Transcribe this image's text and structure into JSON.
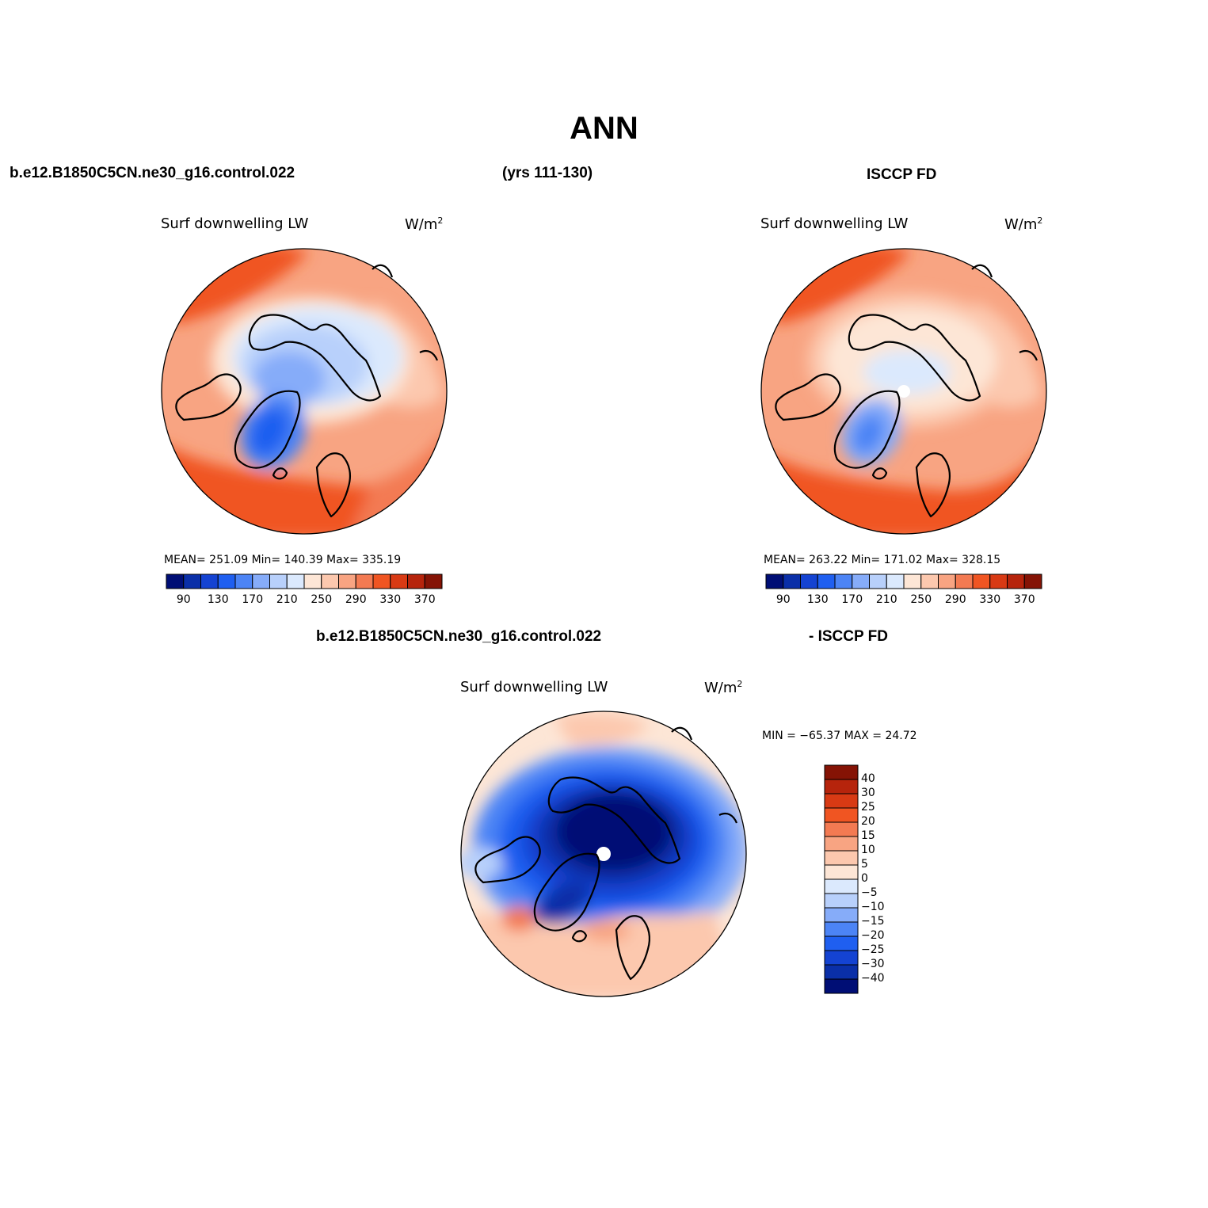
{
  "title": "ANN",
  "header": {
    "case_name": "b.e12.B1850C5CN.ne30_g16.control.022",
    "years": "(yrs 111-130)",
    "obs_name": "ISCCP FD",
    "diff_case": "b.e12.B1850C5CN.ne30_g16.control.022",
    "diff_obs": "- ISCCP FD"
  },
  "panels": [
    {
      "title": "Surf downwelling LW",
      "units": "W/m",
      "units_sup": "2",
      "stats": "MEAN= 251.09   Min= 140.39   Max= 335.19"
    },
    {
      "title": "Surf downwelling LW",
      "units": "W/m",
      "units_sup": "2",
      "stats": "MEAN= 263.22   Min= 171.02   Max= 328.15"
    },
    {
      "title": "Surf downwelling LW",
      "units": "W/m",
      "units_sup": "2",
      "stats": "MIN = −65.37 MAX =  24.72"
    }
  ],
  "chart_data": [
    {
      "type": "heatmap",
      "projection": "north-polar-stereographic",
      "title": "Surf downwelling LW",
      "units": "W/m^2",
      "mean": 251.09,
      "min": 140.39,
      "max": 335.19,
      "colorbar_ticks": [
        "90",
        "130",
        "170",
        "210",
        "250",
        "290",
        "330",
        "370"
      ],
      "levels": [
        90,
        110,
        130,
        150,
        170,
        190,
        210,
        230,
        250,
        270,
        290,
        310,
        330,
        350,
        370
      ],
      "colors": [
        "#000e75",
        "#0a2fa8",
        "#1443d2",
        "#1f5ff0",
        "#4c84f5",
        "#86acf9",
        "#b8d0fb",
        "#dbe9fd",
        "#fde6d6",
        "#fcc8ae",
        "#f8a482",
        "#f37a52",
        "#f05522",
        "#d83a14",
        "#b6240c",
        "#851305"
      ]
    },
    {
      "type": "heatmap",
      "projection": "north-polar-stereographic",
      "title": "Surf downwelling LW",
      "units": "W/m^2",
      "mean": 263.22,
      "min": 171.02,
      "max": 328.15,
      "colorbar_ticks": [
        "90",
        "130",
        "170",
        "210",
        "250",
        "290",
        "330",
        "370"
      ],
      "levels": [
        90,
        110,
        130,
        150,
        170,
        190,
        210,
        230,
        250,
        270,
        290,
        310,
        330,
        350,
        370
      ],
      "colors": [
        "#000e75",
        "#0a2fa8",
        "#1443d2",
        "#1f5ff0",
        "#4c84f5",
        "#86acf9",
        "#b8d0fb",
        "#dbe9fd",
        "#fde6d6",
        "#fcc8ae",
        "#f8a482",
        "#f37a52",
        "#f05522",
        "#d83a14",
        "#b6240c",
        "#851305"
      ]
    },
    {
      "type": "heatmap",
      "projection": "north-polar-stereographic",
      "title": "Surf downwelling LW",
      "units": "W/m^2",
      "min": -65.37,
      "max": 24.72,
      "colorbar_ticks": [
        "40",
        "30",
        "25",
        "20",
        "15",
        "10",
        "5",
        "0",
        "−5",
        "−10",
        "−15",
        "−20",
        "−25",
        "−30",
        "−40"
      ],
      "levels": [
        40,
        30,
        25,
        20,
        15,
        10,
        5,
        0,
        -5,
        -10,
        -15,
        -20,
        -25,
        -30,
        -40
      ],
      "colors": [
        "#851305",
        "#b6240c",
        "#d83a14",
        "#f05522",
        "#f37a52",
        "#f8a482",
        "#fcc8ae",
        "#fde6d6",
        "#dbe9fd",
        "#b8d0fb",
        "#86acf9",
        "#4c84f5",
        "#1f5ff0",
        "#1443d2",
        "#0a2fa8",
        "#000e75"
      ]
    }
  ]
}
